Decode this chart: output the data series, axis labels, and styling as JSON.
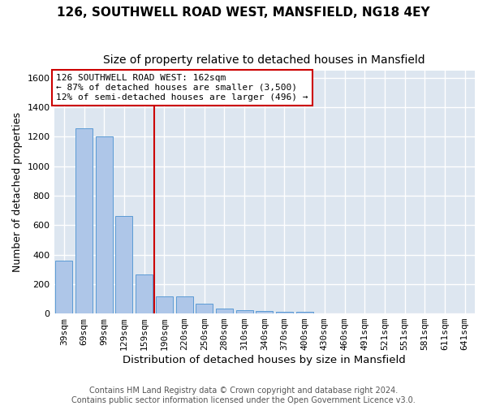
{
  "title1": "126, SOUTHWELL ROAD WEST, MANSFIELD, NG18 4EY",
  "title2": "Size of property relative to detached houses in Mansfield",
  "xlabel": "Distribution of detached houses by size in Mansfield",
  "ylabel": "Number of detached properties",
  "categories": [
    "39sqm",
    "69sqm",
    "99sqm",
    "129sqm",
    "159sqm",
    "190sqm",
    "220sqm",
    "250sqm",
    "280sqm",
    "310sqm",
    "340sqm",
    "370sqm",
    "400sqm",
    "430sqm",
    "460sqm",
    "491sqm",
    "521sqm",
    "551sqm",
    "581sqm",
    "611sqm",
    "641sqm"
  ],
  "values": [
    360,
    1255,
    1205,
    660,
    265,
    115,
    115,
    65,
    35,
    20,
    15,
    10,
    10,
    0,
    0,
    0,
    0,
    0,
    0,
    0,
    0
  ],
  "bar_color": "#aec6e8",
  "bar_edge_color": "#5b9bd5",
  "vline_x": 4.5,
  "vline_color": "#cc0000",
  "annotation_line1": "126 SOUTHWELL ROAD WEST: 162sqm",
  "annotation_line2": "← 87% of detached houses are smaller (3,500)",
  "annotation_line3": "12% of semi-detached houses are larger (496) →",
  "annotation_box_color": "#ffffff",
  "annotation_box_edge": "#cc0000",
  "ylim": [
    0,
    1650
  ],
  "yticks": [
    0,
    200,
    400,
    600,
    800,
    1000,
    1200,
    1400,
    1600
  ],
  "background_color": "#dde6f0",
  "grid_color": "#ffffff",
  "footer": "Contains HM Land Registry data © Crown copyright and database right 2024.\nContains public sector information licensed under the Open Government Licence v3.0.",
  "title1_fontsize": 11,
  "title2_fontsize": 10,
  "xlabel_fontsize": 9.5,
  "ylabel_fontsize": 9,
  "tick_fontsize": 8,
  "annotation_fontsize": 8,
  "footer_fontsize": 7
}
